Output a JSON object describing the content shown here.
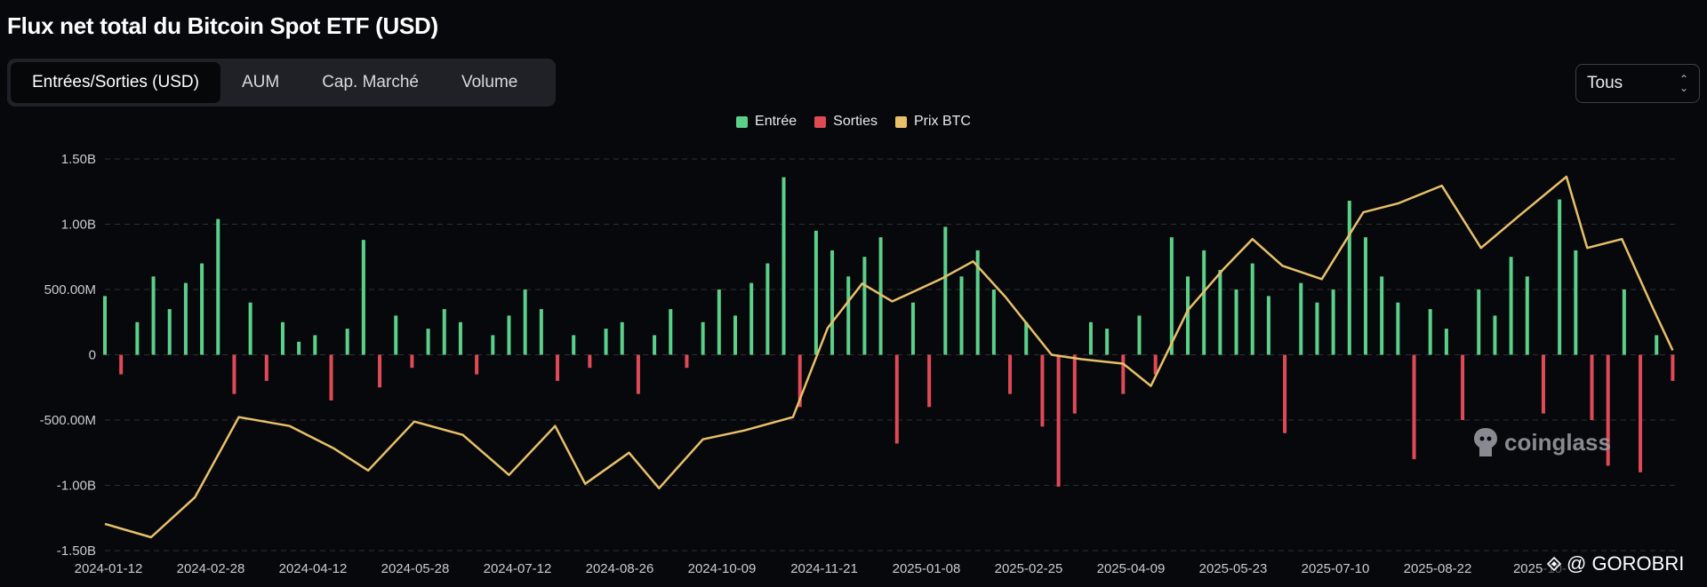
{
  "title": "Flux net total du Bitcoin Spot ETF (USD)",
  "tabs": [
    {
      "label": "Entrées/Sorties (USD)",
      "active": true
    },
    {
      "label": "AUM",
      "active": false
    },
    {
      "label": "Cap. Marché",
      "active": false
    },
    {
      "label": "Volume",
      "active": false
    }
  ],
  "range_select": {
    "value": "Tous"
  },
  "legend": [
    {
      "label": "Entrée",
      "color": "#5bd08a"
    },
    {
      "label": "Sorties",
      "color": "#e04a57"
    },
    {
      "label": "Prix BTC",
      "color": "#e8c06a"
    }
  ],
  "watermark": "coinglass",
  "footer_mark": "@ GOROBRI",
  "chart_data": {
    "type": "bar",
    "title": "Flux net total du Bitcoin Spot ETF (USD)",
    "ylim": [
      -1.5,
      1.5
    ],
    "y_unit": "B USD",
    "y_ticks": [
      1.5,
      1.0,
      0.5,
      0,
      -0.5,
      -1.0,
      -1.5
    ],
    "y_tick_labels": [
      "1.50B",
      "1.00B",
      "500.00M",
      "0",
      "-500.00M",
      "-1.00B",
      "-1.50B"
    ],
    "x_tick_labels": [
      "2024-01-12",
      "2024-02-28",
      "2024-04-12",
      "2024-05-28",
      "2024-07-12",
      "2024-08-26",
      "2024-10-09",
      "2024-11-21",
      "2025-01-08",
      "2025-02-25",
      "2025-04-09",
      "2025-05-23",
      "2025-07-10",
      "2025-08-22",
      "2025-10-"
    ],
    "grid": true,
    "legend_position": "top-center",
    "series": [
      {
        "name": "Entrée / Sorties",
        "x": [
          "2024-01-12",
          "2024-01-19",
          "2024-01-26",
          "2024-02-02",
          "2024-02-09",
          "2024-02-16",
          "2024-02-23",
          "2024-03-01",
          "2024-03-08",
          "2024-03-15",
          "2024-03-22",
          "2024-03-29",
          "2024-04-05",
          "2024-04-12",
          "2024-04-19",
          "2024-04-26",
          "2024-05-03",
          "2024-05-10",
          "2024-05-17",
          "2024-05-24",
          "2024-05-31",
          "2024-06-07",
          "2024-06-14",
          "2024-06-21",
          "2024-06-28",
          "2024-07-05",
          "2024-07-12",
          "2024-07-19",
          "2024-07-26",
          "2024-08-02",
          "2024-08-09",
          "2024-08-16",
          "2024-08-23",
          "2024-08-30",
          "2024-09-06",
          "2024-09-13",
          "2024-09-20",
          "2024-09-27",
          "2024-10-04",
          "2024-10-11",
          "2024-10-18",
          "2024-10-25",
          "2024-11-01",
          "2024-11-08",
          "2024-11-15",
          "2024-11-22",
          "2024-11-29",
          "2024-12-06",
          "2024-12-13",
          "2024-12-20",
          "2024-12-27",
          "2025-01-03",
          "2025-01-10",
          "2025-01-17",
          "2025-01-24",
          "2025-01-31",
          "2025-02-07",
          "2025-02-14",
          "2025-02-21",
          "2025-02-28",
          "2025-03-07",
          "2025-03-14",
          "2025-03-21",
          "2025-03-28",
          "2025-04-04",
          "2025-04-11",
          "2025-04-18",
          "2025-04-25",
          "2025-05-02",
          "2025-05-09",
          "2025-05-16",
          "2025-05-23",
          "2025-05-30",
          "2025-06-06",
          "2025-06-13",
          "2025-06-20",
          "2025-06-27",
          "2025-07-04",
          "2025-07-11",
          "2025-07-18",
          "2025-07-25",
          "2025-08-01",
          "2025-08-08",
          "2025-08-15",
          "2025-08-22",
          "2025-08-29",
          "2025-09-05",
          "2025-09-12",
          "2025-09-19",
          "2025-09-26",
          "2025-10-03",
          "2025-10-10",
          "2025-10-17",
          "2025-10-24",
          "2025-10-31",
          "2025-11-07",
          "2025-11-14",
          "2025-11-21"
        ],
        "values": [
          0.45,
          -0.15,
          0.25,
          0.6,
          0.35,
          0.55,
          0.7,
          1.04,
          -0.3,
          0.4,
          -0.2,
          0.25,
          0.1,
          0.15,
          -0.35,
          0.2,
          0.88,
          -0.25,
          0.3,
          -0.1,
          0.2,
          0.35,
          0.25,
          -0.15,
          0.15,
          0.3,
          0.5,
          0.35,
          -0.2,
          0.15,
          -0.1,
          0.2,
          0.25,
          -0.3,
          0.15,
          0.35,
          -0.1,
          0.25,
          0.5,
          0.3,
          0.55,
          0.7,
          1.36,
          -0.4,
          0.95,
          0.8,
          0.6,
          0.75,
          0.9,
          -0.68,
          0.4,
          -0.4,
          0.98,
          0.6,
          0.8,
          0.5,
          -0.3,
          0.25,
          -0.55,
          -1.01,
          -0.45,
          0.25,
          0.2,
          -0.3,
          0.3,
          -0.15,
          0.9,
          0.6,
          0.8,
          0.65,
          0.5,
          0.7,
          0.45,
          -0.6,
          0.55,
          0.4,
          0.5,
          1.18,
          0.9,
          0.6,
          0.4,
          -0.8,
          0.35,
          0.2,
          -0.5,
          0.5,
          0.3,
          0.75,
          0.6,
          -0.45,
          1.19,
          0.8,
          -0.5,
          -0.85,
          0.5,
          -0.9,
          0.15,
          -0.2
        ]
      },
      {
        "name": "Prix BTC",
        "x": [
          "2024-01-12",
          "2024-02-01",
          "2024-02-20",
          "2024-03-10",
          "2024-04-01",
          "2024-04-20",
          "2024-05-05",
          "2024-05-25",
          "2024-06-15",
          "2024-07-05",
          "2024-07-25",
          "2024-08-07",
          "2024-08-26",
          "2024-09-08",
          "2024-09-27",
          "2024-10-15",
          "2024-11-05",
          "2024-11-20",
          "2024-12-05",
          "2024-12-18",
          "2025-01-08",
          "2025-01-22",
          "2025-02-05",
          "2025-02-25",
          "2025-03-10",
          "2025-03-28",
          "2025-04-09",
          "2025-04-25",
          "2025-05-10",
          "2025-05-23",
          "2025-06-05",
          "2025-06-22",
          "2025-07-10",
          "2025-07-25",
          "2025-08-13",
          "2025-08-30",
          "2025-09-15",
          "2025-10-06",
          "2025-10-15",
          "2025-10-30",
          "2025-11-12",
          "2025-11-21"
        ],
        "values": [
          46000,
          43000,
          52000,
          70000,
          68000,
          63000,
          58000,
          69000,
          66000,
          57000,
          68000,
          55000,
          62000,
          54000,
          65000,
          67000,
          70000,
          90000,
          100000,
          96000,
          101000,
          105000,
          97000,
          84000,
          83000,
          82000,
          77000,
          94000,
          103000,
          110000,
          104000,
          101000,
          116000,
          118000,
          122000,
          108000,
          115000,
          124000,
          108000,
          110000,
          95000,
          85000
        ]
      }
    ],
    "price_scale": {
      "min": 40000,
      "max": 128000
    }
  }
}
